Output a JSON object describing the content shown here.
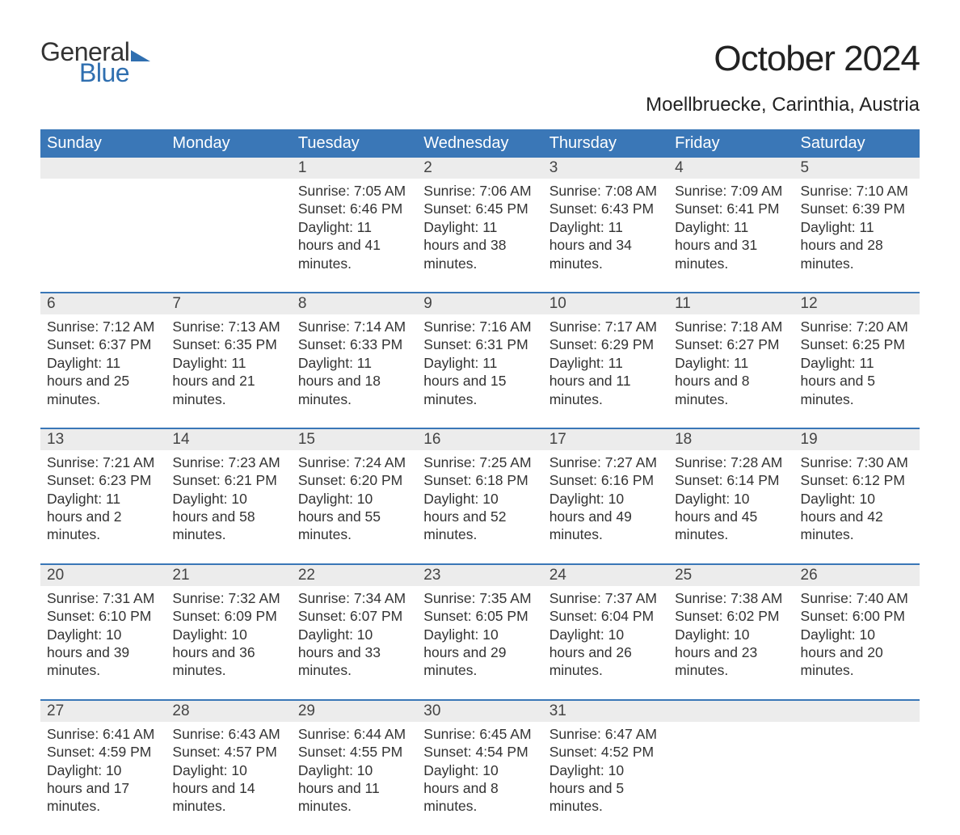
{
  "logo": {
    "text1": "General",
    "text2": "Blue"
  },
  "title": "October 2024",
  "location": "Moellbruecke, Carinthia, Austria",
  "colors": {
    "header_bg": "#3a77b7",
    "header_text": "#ffffff",
    "daynum_bg": "#ececec",
    "rule": "#3a77b7",
    "body_text": "#333333",
    "logo_accent": "#2f6fb0",
    "page_bg": "#ffffff"
  },
  "typography": {
    "title_fontsize": 44,
    "location_fontsize": 24,
    "header_fontsize": 20,
    "daynum_fontsize": 19,
    "body_fontsize": 17.5,
    "font_family": "Arial"
  },
  "layout": {
    "columns": 7,
    "rows": 5,
    "first_weekday": "Sunday"
  },
  "weekdays": [
    "Sunday",
    "Monday",
    "Tuesday",
    "Wednesday",
    "Thursday",
    "Friday",
    "Saturday"
  ],
  "weeks": [
    [
      {
        "n": "",
        "sunrise": "",
        "sunset": "",
        "daylight": ""
      },
      {
        "n": "",
        "sunrise": "",
        "sunset": "",
        "daylight": ""
      },
      {
        "n": "1",
        "sunrise": "Sunrise: 7:05 AM",
        "sunset": "Sunset: 6:46 PM",
        "daylight": "Daylight: 11 hours and 41 minutes."
      },
      {
        "n": "2",
        "sunrise": "Sunrise: 7:06 AM",
        "sunset": "Sunset: 6:45 PM",
        "daylight": "Daylight: 11 hours and 38 minutes."
      },
      {
        "n": "3",
        "sunrise": "Sunrise: 7:08 AM",
        "sunset": "Sunset: 6:43 PM",
        "daylight": "Daylight: 11 hours and 34 minutes."
      },
      {
        "n": "4",
        "sunrise": "Sunrise: 7:09 AM",
        "sunset": "Sunset: 6:41 PM",
        "daylight": "Daylight: 11 hours and 31 minutes."
      },
      {
        "n": "5",
        "sunrise": "Sunrise: 7:10 AM",
        "sunset": "Sunset: 6:39 PM",
        "daylight": "Daylight: 11 hours and 28 minutes."
      }
    ],
    [
      {
        "n": "6",
        "sunrise": "Sunrise: 7:12 AM",
        "sunset": "Sunset: 6:37 PM",
        "daylight": "Daylight: 11 hours and 25 minutes."
      },
      {
        "n": "7",
        "sunrise": "Sunrise: 7:13 AM",
        "sunset": "Sunset: 6:35 PM",
        "daylight": "Daylight: 11 hours and 21 minutes."
      },
      {
        "n": "8",
        "sunrise": "Sunrise: 7:14 AM",
        "sunset": "Sunset: 6:33 PM",
        "daylight": "Daylight: 11 hours and 18 minutes."
      },
      {
        "n": "9",
        "sunrise": "Sunrise: 7:16 AM",
        "sunset": "Sunset: 6:31 PM",
        "daylight": "Daylight: 11 hours and 15 minutes."
      },
      {
        "n": "10",
        "sunrise": "Sunrise: 7:17 AM",
        "sunset": "Sunset: 6:29 PM",
        "daylight": "Daylight: 11 hours and 11 minutes."
      },
      {
        "n": "11",
        "sunrise": "Sunrise: 7:18 AM",
        "sunset": "Sunset: 6:27 PM",
        "daylight": "Daylight: 11 hours and 8 minutes."
      },
      {
        "n": "12",
        "sunrise": "Sunrise: 7:20 AM",
        "sunset": "Sunset: 6:25 PM",
        "daylight": "Daylight: 11 hours and 5 minutes."
      }
    ],
    [
      {
        "n": "13",
        "sunrise": "Sunrise: 7:21 AM",
        "sunset": "Sunset: 6:23 PM",
        "daylight": "Daylight: 11 hours and 2 minutes."
      },
      {
        "n": "14",
        "sunrise": "Sunrise: 7:23 AM",
        "sunset": "Sunset: 6:21 PM",
        "daylight": "Daylight: 10 hours and 58 minutes."
      },
      {
        "n": "15",
        "sunrise": "Sunrise: 7:24 AM",
        "sunset": "Sunset: 6:20 PM",
        "daylight": "Daylight: 10 hours and 55 minutes."
      },
      {
        "n": "16",
        "sunrise": "Sunrise: 7:25 AM",
        "sunset": "Sunset: 6:18 PM",
        "daylight": "Daylight: 10 hours and 52 minutes."
      },
      {
        "n": "17",
        "sunrise": "Sunrise: 7:27 AM",
        "sunset": "Sunset: 6:16 PM",
        "daylight": "Daylight: 10 hours and 49 minutes."
      },
      {
        "n": "18",
        "sunrise": "Sunrise: 7:28 AM",
        "sunset": "Sunset: 6:14 PM",
        "daylight": "Daylight: 10 hours and 45 minutes."
      },
      {
        "n": "19",
        "sunrise": "Sunrise: 7:30 AM",
        "sunset": "Sunset: 6:12 PM",
        "daylight": "Daylight: 10 hours and 42 minutes."
      }
    ],
    [
      {
        "n": "20",
        "sunrise": "Sunrise: 7:31 AM",
        "sunset": "Sunset: 6:10 PM",
        "daylight": "Daylight: 10 hours and 39 minutes."
      },
      {
        "n": "21",
        "sunrise": "Sunrise: 7:32 AM",
        "sunset": "Sunset: 6:09 PM",
        "daylight": "Daylight: 10 hours and 36 minutes."
      },
      {
        "n": "22",
        "sunrise": "Sunrise: 7:34 AM",
        "sunset": "Sunset: 6:07 PM",
        "daylight": "Daylight: 10 hours and 33 minutes."
      },
      {
        "n": "23",
        "sunrise": "Sunrise: 7:35 AM",
        "sunset": "Sunset: 6:05 PM",
        "daylight": "Daylight: 10 hours and 29 minutes."
      },
      {
        "n": "24",
        "sunrise": "Sunrise: 7:37 AM",
        "sunset": "Sunset: 6:04 PM",
        "daylight": "Daylight: 10 hours and 26 minutes."
      },
      {
        "n": "25",
        "sunrise": "Sunrise: 7:38 AM",
        "sunset": "Sunset: 6:02 PM",
        "daylight": "Daylight: 10 hours and 23 minutes."
      },
      {
        "n": "26",
        "sunrise": "Sunrise: 7:40 AM",
        "sunset": "Sunset: 6:00 PM",
        "daylight": "Daylight: 10 hours and 20 minutes."
      }
    ],
    [
      {
        "n": "27",
        "sunrise": "Sunrise: 6:41 AM",
        "sunset": "Sunset: 4:59 PM",
        "daylight": "Daylight: 10 hours and 17 minutes."
      },
      {
        "n": "28",
        "sunrise": "Sunrise: 6:43 AM",
        "sunset": "Sunset: 4:57 PM",
        "daylight": "Daylight: 10 hours and 14 minutes."
      },
      {
        "n": "29",
        "sunrise": "Sunrise: 6:44 AM",
        "sunset": "Sunset: 4:55 PM",
        "daylight": "Daylight: 10 hours and 11 minutes."
      },
      {
        "n": "30",
        "sunrise": "Sunrise: 6:45 AM",
        "sunset": "Sunset: 4:54 PM",
        "daylight": "Daylight: 10 hours and 8 minutes."
      },
      {
        "n": "31",
        "sunrise": "Sunrise: 6:47 AM",
        "sunset": "Sunset: 4:52 PM",
        "daylight": "Daylight: 10 hours and 5 minutes."
      },
      {
        "n": "",
        "sunrise": "",
        "sunset": "",
        "daylight": ""
      },
      {
        "n": "",
        "sunrise": "",
        "sunset": "",
        "daylight": ""
      }
    ]
  ]
}
